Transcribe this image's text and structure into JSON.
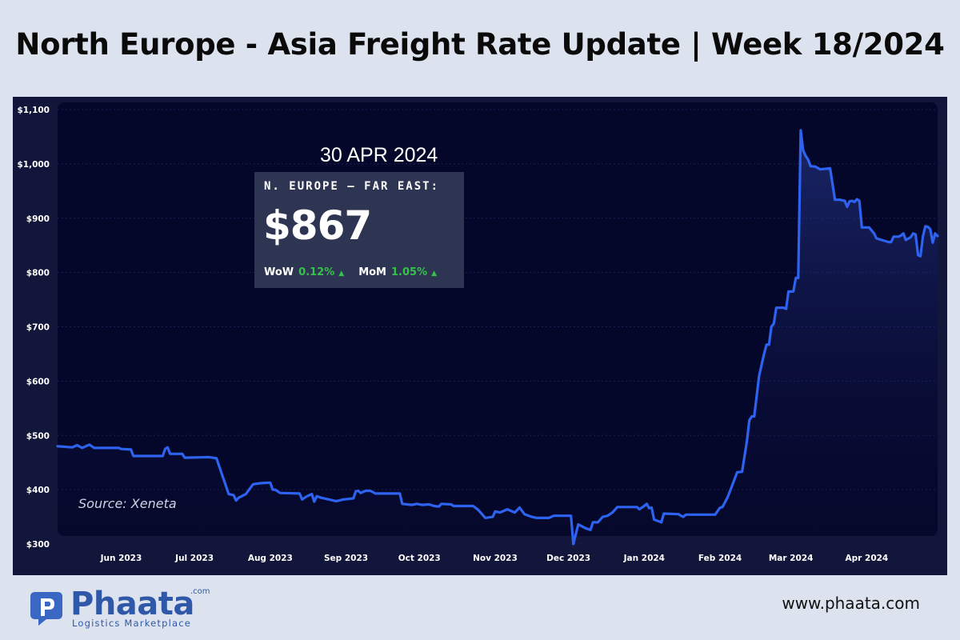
{
  "header": {
    "title": "North Europe - Asia Freight Rate Update | Week 18/2024"
  },
  "annotation": {
    "date": "30 APR 2024",
    "route": "N. EUROPE – FAR EAST:",
    "rate": "$867",
    "wow_label": "WoW",
    "wow_value": "0.12%",
    "mom_label": "MoM",
    "mom_value": "1.05%",
    "change_color": "#35c24a"
  },
  "source": "Source: Xeneta",
  "footer": {
    "brand": "Phaata",
    "brand_suffix": ".com",
    "tagline": "Logistics Marketplace",
    "website": "www.phaata.com"
  },
  "chart_data": {
    "type": "area",
    "title": "",
    "xlabel": "",
    "ylabel": "",
    "ylim": [
      300,
      1100
    ],
    "yticks": [
      300,
      400,
      500,
      600,
      700,
      800,
      900,
      1000,
      1100
    ],
    "ytick_labels": [
      "$300",
      "$400",
      "$500",
      "$600",
      "$700",
      "$800",
      "$900",
      "$1,000",
      "$1,100"
    ],
    "xlim": [
      "2023-05-06",
      "2024-04-30"
    ],
    "xticks": [
      "2023-06-01",
      "2023-07-01",
      "2023-08-01",
      "2023-09-01",
      "2023-10-01",
      "2023-11-01",
      "2023-12-01",
      "2024-01-01",
      "2024-02-01",
      "2024-03-01",
      "2024-04-01"
    ],
    "xtick_labels": [
      "Jun 2023",
      "Jul 2023",
      "Aug 2023",
      "Sep 2023",
      "Oct 2023",
      "Nov 2023",
      "Dec 2023",
      "Jan 2024",
      "Feb 2024",
      "Mar 2024",
      "Apr 2024"
    ],
    "grid": true,
    "line_color": "#2d63f0",
    "series": [
      {
        "points": [
          [
            "2023-05-06",
            480
          ],
          [
            "2023-05-12",
            478
          ],
          [
            "2023-05-14",
            482
          ],
          [
            "2023-05-16",
            477
          ],
          [
            "2023-05-19",
            483
          ],
          [
            "2023-05-21",
            477
          ],
          [
            "2023-05-31",
            477
          ],
          [
            "2023-06-01",
            475
          ],
          [
            "2023-06-05",
            474
          ],
          [
            "2023-06-06",
            462
          ],
          [
            "2023-06-18",
            462
          ],
          [
            "2023-06-19",
            475
          ],
          [
            "2023-06-20",
            478
          ],
          [
            "2023-06-21",
            466
          ],
          [
            "2023-06-26",
            466
          ],
          [
            "2023-06-27",
            459
          ],
          [
            "2023-07-07",
            460
          ],
          [
            "2023-07-10",
            458
          ],
          [
            "2023-07-13",
            418
          ],
          [
            "2023-07-15",
            392
          ],
          [
            "2023-07-17",
            390
          ],
          [
            "2023-07-18",
            380
          ],
          [
            "2023-07-19",
            385
          ],
          [
            "2023-07-22",
            392
          ],
          [
            "2023-07-25",
            410
          ],
          [
            "2023-07-28",
            412
          ],
          [
            "2023-08-01",
            413
          ],
          [
            "2023-08-02",
            400
          ],
          [
            "2023-08-03",
            400
          ],
          [
            "2023-08-05",
            394
          ],
          [
            "2023-08-13",
            393
          ],
          [
            "2023-08-14",
            382
          ],
          [
            "2023-08-16",
            388
          ],
          [
            "2023-08-18",
            392
          ],
          [
            "2023-08-19",
            378
          ],
          [
            "2023-08-20",
            388
          ],
          [
            "2023-08-22",
            385
          ],
          [
            "2023-08-28",
            379
          ],
          [
            "2023-08-31",
            382
          ],
          [
            "2023-09-04",
            384
          ],
          [
            "2023-09-05",
            397
          ],
          [
            "2023-09-06",
            398
          ],
          [
            "2023-09-07",
            394
          ],
          [
            "2023-09-09",
            398
          ],
          [
            "2023-09-11",
            398
          ],
          [
            "2023-09-13",
            393
          ],
          [
            "2023-09-23",
            393
          ],
          [
            "2023-09-24",
            374
          ],
          [
            "2023-09-28",
            372
          ],
          [
            "2023-09-30",
            374
          ],
          [
            "2023-10-02",
            372
          ],
          [
            "2023-10-05",
            373
          ],
          [
            "2023-10-07",
            370
          ],
          [
            "2023-10-09",
            369
          ],
          [
            "2023-10-10",
            374
          ],
          [
            "2023-10-14",
            373
          ],
          [
            "2023-10-15",
            370
          ],
          [
            "2023-10-23",
            370
          ],
          [
            "2023-10-25",
            363
          ],
          [
            "2023-10-28",
            348
          ],
          [
            "2023-10-31",
            350
          ],
          [
            "2023-11-01",
            360
          ],
          [
            "2023-11-03",
            358
          ],
          [
            "2023-11-06",
            364
          ],
          [
            "2023-11-09",
            358
          ],
          [
            "2023-11-11",
            367
          ],
          [
            "2023-11-13",
            355
          ],
          [
            "2023-11-16",
            350
          ],
          [
            "2023-11-18",
            348
          ],
          [
            "2023-11-23",
            348
          ],
          [
            "2023-11-25",
            352
          ],
          [
            "2023-12-02",
            352
          ],
          [
            "2023-12-03",
            300
          ],
          [
            "2023-12-05",
            336
          ],
          [
            "2023-12-08",
            329
          ],
          [
            "2023-12-10",
            326
          ],
          [
            "2023-12-11",
            340
          ],
          [
            "2023-12-13",
            340
          ],
          [
            "2023-12-15",
            350
          ],
          [
            "2023-12-17",
            352
          ],
          [
            "2023-12-19",
            358
          ],
          [
            "2023-12-21",
            368
          ],
          [
            "2023-12-29",
            368
          ],
          [
            "2023-12-30",
            364
          ],
          [
            "2024-01-01",
            370
          ],
          [
            "2024-01-02",
            374
          ],
          [
            "2024-01-03",
            366
          ],
          [
            "2024-01-04",
            367
          ],
          [
            "2024-01-05",
            345
          ],
          [
            "2024-01-08",
            340
          ],
          [
            "2024-01-09",
            356
          ],
          [
            "2024-01-15",
            355
          ],
          [
            "2024-01-16",
            352
          ],
          [
            "2024-01-17",
            350
          ],
          [
            "2024-01-18",
            354
          ],
          [
            "2024-01-30",
            354
          ],
          [
            "2024-02-01",
            367
          ],
          [
            "2024-02-02",
            368
          ],
          [
            "2024-02-04",
            385
          ],
          [
            "2024-02-06",
            408
          ],
          [
            "2024-02-08",
            432
          ],
          [
            "2024-02-10",
            433
          ],
          [
            "2024-02-12",
            490
          ],
          [
            "2024-02-13",
            528
          ],
          [
            "2024-02-14",
            535
          ],
          [
            "2024-02-15",
            535
          ],
          [
            "2024-02-17",
            610
          ],
          [
            "2024-02-18",
            630
          ],
          [
            "2024-02-19",
            650
          ],
          [
            "2024-02-20",
            667
          ],
          [
            "2024-02-21",
            667
          ],
          [
            "2024-02-22",
            700
          ],
          [
            "2024-02-23",
            706
          ],
          [
            "2024-02-24",
            735
          ],
          [
            "2024-02-27",
            735
          ],
          [
            "2024-02-28",
            733
          ],
          [
            "2024-02-29",
            765
          ],
          [
            "2024-03-02",
            765
          ],
          [
            "2024-03-03",
            790
          ],
          [
            "2024-03-04",
            790
          ],
          [
            "2024-03-05",
            1062
          ],
          [
            "2024-03-06",
            1025
          ],
          [
            "2024-03-07",
            1015
          ],
          [
            "2024-03-08",
            1008
          ],
          [
            "2024-03-09",
            996
          ],
          [
            "2024-03-11",
            995
          ],
          [
            "2024-03-13",
            990
          ],
          [
            "2024-03-17",
            992
          ],
          [
            "2024-03-19",
            934
          ],
          [
            "2024-03-21",
            934
          ],
          [
            "2024-03-23",
            932
          ],
          [
            "2024-03-24",
            921
          ],
          [
            "2024-03-25",
            931
          ],
          [
            "2024-03-26",
            932
          ],
          [
            "2024-03-27",
            930
          ],
          [
            "2024-03-28",
            935
          ],
          [
            "2024-03-29",
            932
          ],
          [
            "2024-03-30",
            883
          ],
          [
            "2024-04-02",
            883
          ],
          [
            "2024-04-04",
            872
          ],
          [
            "2024-04-05",
            863
          ],
          [
            "2024-04-07",
            860
          ],
          [
            "2024-04-10",
            856
          ],
          [
            "2024-04-11",
            856
          ],
          [
            "2024-04-12",
            866
          ],
          [
            "2024-04-14",
            866
          ],
          [
            "2024-04-15",
            868
          ],
          [
            "2024-04-16",
            872
          ],
          [
            "2024-04-17",
            860
          ],
          [
            "2024-04-19",
            865
          ],
          [
            "2024-04-20",
            872
          ],
          [
            "2024-04-21",
            870
          ],
          [
            "2024-04-22",
            832
          ],
          [
            "2024-04-23",
            830
          ],
          [
            "2024-04-24",
            867
          ],
          [
            "2024-04-25",
            885
          ],
          [
            "2024-04-26",
            884
          ],
          [
            "2024-04-27",
            880
          ],
          [
            "2024-04-28",
            855
          ],
          [
            "2024-04-29",
            872
          ],
          [
            "2024-04-30",
            867
          ]
        ]
      }
    ]
  }
}
